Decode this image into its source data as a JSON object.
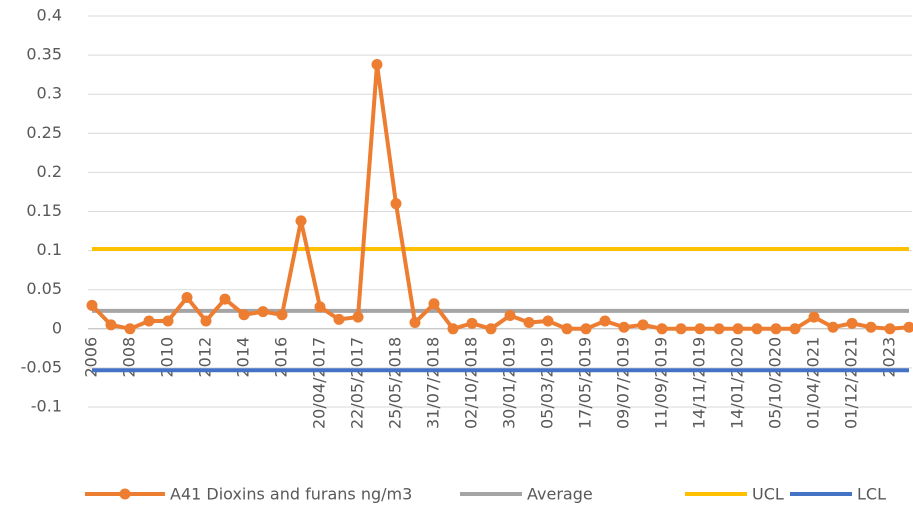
{
  "chart_data": {
    "type": "line",
    "categories": [
      "2006",
      null,
      "2008",
      null,
      "2010",
      null,
      "2012",
      null,
      "2014",
      null,
      "2016",
      null,
      "20/04/2017",
      null,
      "22/05/2017",
      null,
      "25/05/2018",
      null,
      "31/07/2018",
      null,
      "02/10/2018",
      null,
      "30/01/2019",
      null,
      "05/03/2019",
      null,
      "17/05/2019",
      null,
      "09/07/2019",
      null,
      "11/09/2019",
      null,
      "14/11/2019",
      null,
      "14/01/2020",
      null,
      "05/10/2020",
      null,
      "01/04/2021",
      null,
      "01/12/2021",
      null,
      "2023",
      null
    ],
    "series": [
      {
        "name": "A41 Dioxins and furans ng/m3",
        "color": "#ED7D31",
        "marker": true,
        "values": [
          0.03,
          0.005,
          0.0,
          0.01,
          0.01,
          0.04,
          0.01,
          0.038,
          0.018,
          0.022,
          0.018,
          0.138,
          0.028,
          0.012,
          0.015,
          0.338,
          0.16,
          0.008,
          0.032,
          0.0,
          0.007,
          0.0,
          0.017,
          0.008,
          0.01,
          0.0,
          0.0,
          0.01,
          0.002,
          0.005,
          0.0,
          0.0,
          0.0,
          0.0,
          0.0,
          0.0,
          0.0,
          0.0,
          0.015,
          0.002,
          0.007,
          0.002,
          0.0,
          0.002
        ]
      },
      {
        "name": "Average",
        "color": "#A5A5A5",
        "marker": false,
        "values": [
          0.023,
          0.023,
          0.023,
          0.023,
          0.023,
          0.023,
          0.023,
          0.023,
          0.023,
          0.023,
          0.023,
          0.023,
          0.023,
          0.023,
          0.023,
          0.023,
          0.023,
          0.023,
          0.023,
          0.023,
          0.023,
          0.023,
          0.023,
          0.023,
          0.023,
          0.023,
          0.023,
          0.023,
          0.023,
          0.023,
          0.023,
          0.023,
          0.023,
          0.023,
          0.023,
          0.023,
          0.023,
          0.023,
          0.023,
          0.023,
          0.023,
          0.023,
          0.023,
          0.023
        ]
      },
      {
        "name": "UCL",
        "color": "#FFC000",
        "marker": false,
        "values": [
          0.102,
          0.102,
          0.102,
          0.102,
          0.102,
          0.102,
          0.102,
          0.102,
          0.102,
          0.102,
          0.102,
          0.102,
          0.102,
          0.102,
          0.102,
          0.102,
          0.102,
          0.102,
          0.102,
          0.102,
          0.102,
          0.102,
          0.102,
          0.102,
          0.102,
          0.102,
          0.102,
          0.102,
          0.102,
          0.102,
          0.102,
          0.102,
          0.102,
          0.102,
          0.102,
          0.102,
          0.102,
          0.102,
          0.102,
          0.102,
          0.102,
          0.102,
          0.102,
          0.102
        ]
      },
      {
        "name": "LCL",
        "color": "#4472C4",
        "marker": false,
        "values": [
          -0.053,
          -0.053,
          -0.053,
          -0.053,
          -0.053,
          -0.053,
          -0.053,
          -0.053,
          -0.053,
          -0.053,
          -0.053,
          -0.053,
          -0.053,
          -0.053,
          -0.053,
          -0.053,
          -0.053,
          -0.053,
          -0.053,
          -0.053,
          -0.053,
          -0.053,
          -0.053,
          -0.053,
          -0.053,
          -0.053,
          -0.053,
          -0.053,
          -0.053,
          -0.053,
          -0.053,
          -0.053,
          -0.053,
          -0.053,
          -0.053,
          -0.053,
          -0.053,
          -0.053,
          -0.053,
          -0.053,
          -0.053,
          -0.053,
          -0.053,
          -0.053
        ]
      }
    ],
    "ylim": [
      -0.1,
      0.4
    ],
    "yticks": [
      -0.1,
      -0.05,
      0,
      0.05,
      0.1,
      0.15,
      0.2,
      0.25,
      0.3,
      0.35,
      0.4
    ],
    "grid": true,
    "legend": "bottom"
  }
}
